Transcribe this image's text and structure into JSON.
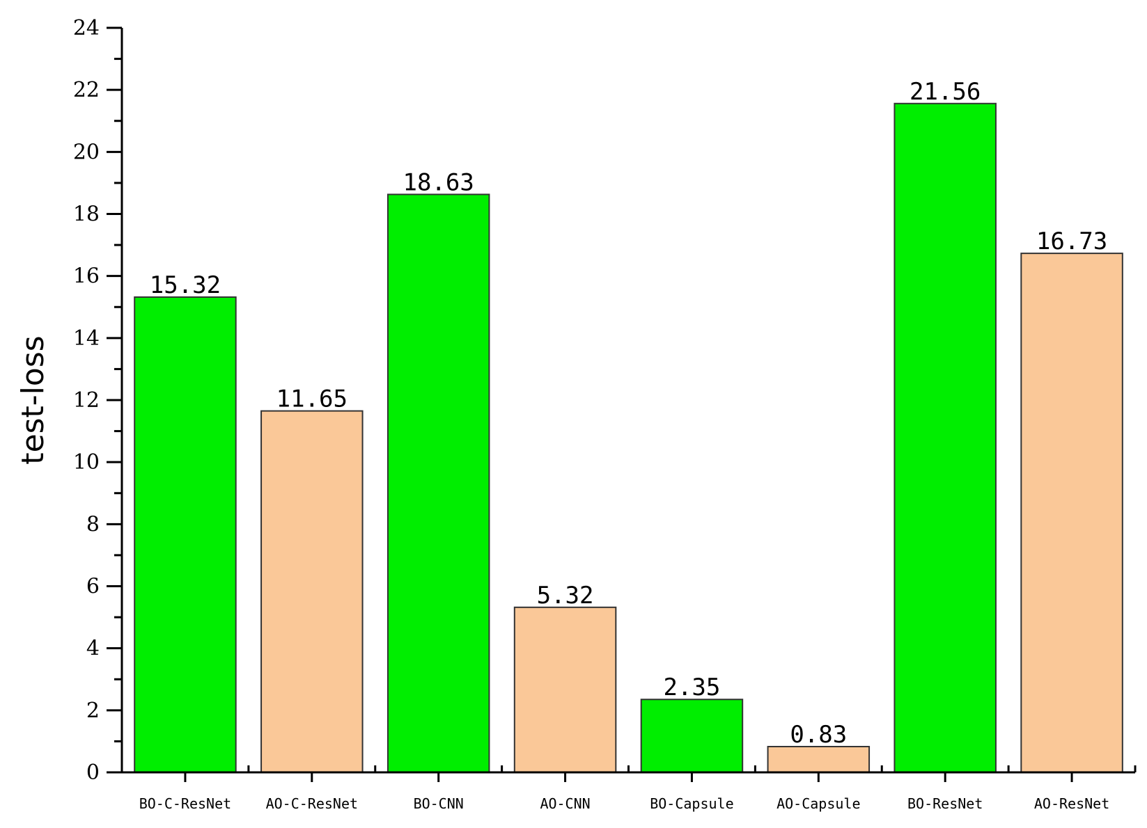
{
  "chart_data": {
    "type": "bar",
    "title": "",
    "xlabel": "",
    "ylabel": "test-loss",
    "ylim": [
      0,
      24
    ],
    "yticks": [
      0,
      2,
      4,
      6,
      8,
      10,
      12,
      14,
      16,
      18,
      20,
      22,
      24
    ],
    "categories": [
      "BO-C-ResNet",
      "AO-C-ResNet",
      "BO-CNN",
      "AO-CNN",
      "BO-Capsule",
      "AO-Capsule",
      "BO-ResNet",
      "AO-ResNet"
    ],
    "values": [
      15.32,
      11.65,
      18.63,
      5.32,
      2.35,
      0.83,
      21.56,
      16.73
    ],
    "value_labels": [
      "15.32",
      "11.65",
      "18.63",
      "5.32",
      "2.35",
      "0.83",
      "21.56",
      "16.73"
    ],
    "bar_colors": [
      "#00ee00",
      "#fac898",
      "#00ee00",
      "#fac898",
      "#00ee00",
      "#fac898",
      "#00ee00",
      "#fac898"
    ],
    "grid": false,
    "legend": "none"
  }
}
